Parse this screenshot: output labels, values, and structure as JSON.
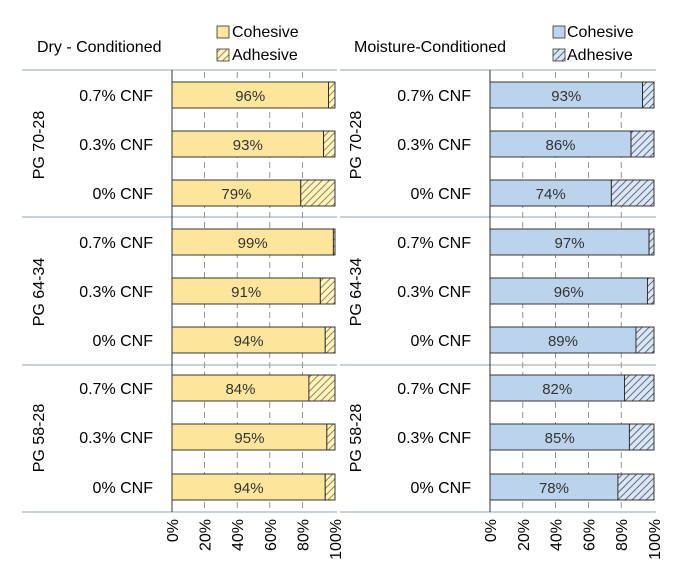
{
  "chart_data": [
    {
      "type": "bar",
      "orientation": "horizontal",
      "stacked": true,
      "title": "Dry - Conditioned",
      "xlabel": "",
      "ylabel": "",
      "xlim": [
        0,
        100
      ],
      "x_ticks": [
        "0%",
        "20%",
        "40%",
        "60%",
        "80%",
        "100%"
      ],
      "legend": {
        "placement": "top-right",
        "entries": [
          "Cohesive",
          "Adhesive"
        ]
      },
      "colors": {
        "cohesive": "#fde69b",
        "adhesive_hatch": "#d9a520"
      },
      "groups": [
        {
          "name": "PG 70-28",
          "rows": [
            {
              "category": "0.7% CNF",
              "cohesive": 96,
              "adhesive": 4,
              "label": "96%"
            },
            {
              "category": "0.3% CNF",
              "cohesive": 93,
              "adhesive": 7,
              "label": "93%"
            },
            {
              "category": "0% CNF",
              "cohesive": 79,
              "adhesive": 21,
              "label": "79%"
            }
          ]
        },
        {
          "name": "PG 64-34",
          "rows": [
            {
              "category": "0.7% CNF",
              "cohesive": 99,
              "adhesive": 1,
              "label": "99%"
            },
            {
              "category": "0.3% CNF",
              "cohesive": 91,
              "adhesive": 9,
              "label": "91%"
            },
            {
              "category": "0% CNF",
              "cohesive": 94,
              "adhesive": 6,
              "label": "94%"
            }
          ]
        },
        {
          "name": "PG 58-28",
          "rows": [
            {
              "category": "0.7% CNF",
              "cohesive": 84,
              "adhesive": 16,
              "label": "84%"
            },
            {
              "category": "0.3% CNF",
              "cohesive": 95,
              "adhesive": 5,
              "label": "95%"
            },
            {
              "category": "0% CNF",
              "cohesive": 94,
              "adhesive": 6,
              "label": "94%"
            }
          ]
        }
      ]
    },
    {
      "type": "bar",
      "orientation": "horizontal",
      "stacked": true,
      "title": "Moisture-Conditioned",
      "xlabel": "",
      "ylabel": "",
      "xlim": [
        0,
        100
      ],
      "x_ticks": [
        "0%",
        "20%",
        "40%",
        "60%",
        "80%",
        "100%"
      ],
      "legend": {
        "placement": "top-right",
        "entries": [
          "Cohesive",
          "Adhesive"
        ]
      },
      "colors": {
        "cohesive": "#bcd3ec",
        "adhesive_hatch": "#5a6d8c"
      },
      "groups": [
        {
          "name": "PG 70-28",
          "rows": [
            {
              "category": "0.7% CNF",
              "cohesive": 93,
              "adhesive": 7,
              "label": "93%"
            },
            {
              "category": "0.3% CNF",
              "cohesive": 86,
              "adhesive": 14,
              "label": "86%"
            },
            {
              "category": "0% CNF",
              "cohesive": 74,
              "adhesive": 26,
              "label": "74%"
            }
          ]
        },
        {
          "name": "PG 64-34",
          "rows": [
            {
              "category": "0.7% CNF",
              "cohesive": 97,
              "adhesive": 3,
              "label": "97%"
            },
            {
              "category": "0.3% CNF",
              "cohesive": 96,
              "adhesive": 4,
              "label": "96%"
            },
            {
              "category": "0% CNF",
              "cohesive": 89,
              "adhesive": 11,
              "label": "89%"
            }
          ]
        },
        {
          "name": "PG 58-28",
          "rows": [
            {
              "category": "0.7% CNF",
              "cohesive": 82,
              "adhesive": 18,
              "label": "82%"
            },
            {
              "category": "0.3% CNF",
              "cohesive": 85,
              "adhesive": 15,
              "label": "85%"
            },
            {
              "category": "0% CNF",
              "cohesive": 78,
              "adhesive": 22,
              "label": "78%"
            }
          ]
        }
      ]
    }
  ]
}
